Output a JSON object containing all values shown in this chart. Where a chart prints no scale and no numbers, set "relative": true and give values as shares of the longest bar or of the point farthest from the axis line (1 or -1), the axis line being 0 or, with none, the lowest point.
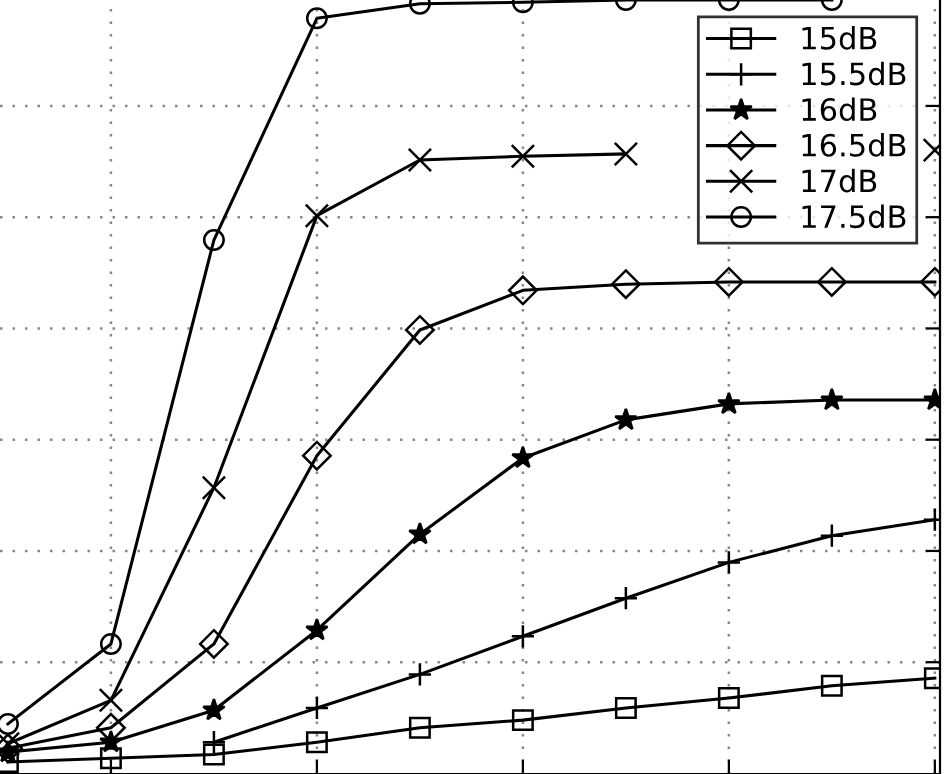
{
  "chart_data": {
    "type": "line",
    "relative": true,
    "grid": true,
    "legend": "top right",
    "line_style": "solid",
    "categories": [
      null,
      null,
      null,
      null,
      null,
      null,
      null,
      null,
      null,
      null
    ],
    "series": [
      {
        "name": "15dB",
        "color": "#000000",
        "marker": "square",
        "values": [
          0,
          0.005,
          0.01,
          0.026,
          0.045,
          0.055,
          0.071,
          0.084,
          0.1,
          0.11
        ]
      },
      {
        "name": "15.5dB",
        "color": "#000000",
        "marker": "plus",
        "values": [
          null,
          null,
          0.026,
          0.071,
          0.115,
          0.165,
          0.215,
          0.262,
          0.297,
          0.318
        ]
      },
      {
        "name": "16dB",
        "color": "#000000",
        "marker": "star",
        "values": [
          0.013,
          0.026,
          0.068,
          0.173,
          0.299,
          0.399,
          0.449,
          0.47,
          0.475,
          0.475
        ]
      },
      {
        "name": "16.5dB",
        "color": "#000000",
        "marker": "diamond",
        "values": [
          0.018,
          0.045,
          0.155,
          0.402,
          0.567,
          0.619,
          0.627,
          0.63,
          0.63,
          0.63
        ]
      },
      {
        "name": "17dB",
        "color": "#000000",
        "marker": "cross",
        "values": [
          0.024,
          0.081,
          0.36,
          0.717,
          0.79,
          0.795,
          0.798,
          null,
          null,
          0.803
        ]
      },
      {
        "name": "17.5dB",
        "color": "#000000",
        "marker": "circle",
        "values": [
          0.05,
          0.155,
          0.685,
          0.976,
          0.995,
          0.997,
          1,
          1,
          1,
          null
        ]
      }
    ]
  }
}
